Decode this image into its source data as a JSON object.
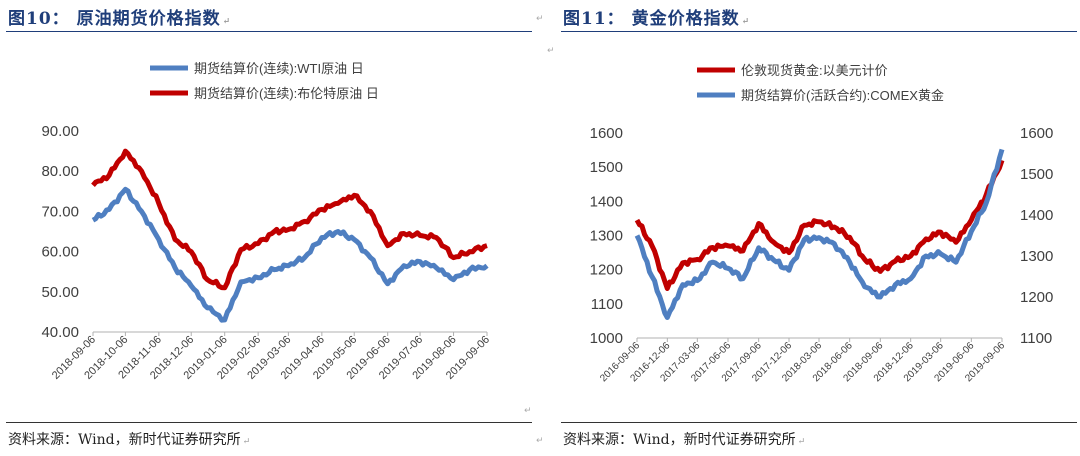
{
  "left": {
    "title": "图10：  原油期货价格指数",
    "source": "资料来源：Wind，新时代证券研究所"
  },
  "right": {
    "title": "图11：  黄金价格指数",
    "source": "资料来源：Wind，新时代证券研究所"
  },
  "chart_data": [
    {
      "type": "line",
      "title": "",
      "xlabel": "",
      "ylabel": "",
      "ylim": [
        40,
        90
      ],
      "yticks": [
        "90.00",
        "80.00",
        "70.00",
        "60.00",
        "50.00",
        "40.00"
      ],
      "xticks": [
        "2018-09-06",
        "2018-10-06",
        "2018-11-06",
        "2018-12-06",
        "2019-01-06",
        "2019-02-06",
        "2019-03-06",
        "2019-04-06",
        "2019-05-06",
        "2019-06-06",
        "2019-07-06",
        "2019-08-06",
        "2019-09-06"
      ],
      "x": [
        "2018-09-06",
        "2018-09-21",
        "2018-10-06",
        "2018-10-21",
        "2018-11-06",
        "2018-11-21",
        "2018-12-06",
        "2018-12-21",
        "2019-01-06",
        "2019-01-21",
        "2019-02-06",
        "2019-02-21",
        "2019-03-06",
        "2019-03-21",
        "2019-04-06",
        "2019-04-21",
        "2019-05-06",
        "2019-05-21",
        "2019-06-06",
        "2019-06-21",
        "2019-07-06",
        "2019-07-21",
        "2019-08-06",
        "2019-08-21",
        "2019-09-06"
      ],
      "legend": "top",
      "grid": false,
      "series": [
        {
          "name": "期货结算价(连续):WTI原油 日",
          "color": "#4f7fc1",
          "values": [
            67.8,
            70.5,
            75.5,
            70.0,
            63.0,
            56.0,
            51.5,
            46.0,
            43.0,
            52.5,
            53.5,
            55.5,
            56.5,
            58.5,
            63.5,
            65.0,
            63.0,
            58.5,
            52.0,
            56.5,
            57.5,
            56.0,
            53.0,
            55.5,
            56.5
          ]
        },
        {
          "name": "期货结算价(连续):布伦特原油 日",
          "color": "#c00000",
          "values": [
            76.5,
            79.0,
            85.0,
            80.0,
            72.0,
            63.0,
            60.0,
            53.0,
            51.0,
            60.5,
            62.0,
            65.0,
            65.5,
            67.5,
            70.5,
            72.0,
            74.0,
            70.0,
            61.5,
            64.5,
            64.0,
            63.5,
            58.5,
            60.0,
            61.5
          ]
        }
      ]
    },
    {
      "type": "line",
      "title": "",
      "xlabel": "",
      "ylabel": "",
      "ylim": [
        1000,
        1600
      ],
      "y2lim": [
        1100,
        1600
      ],
      "yticks": [
        "1600",
        "1500",
        "1400",
        "1300",
        "1200",
        "1100",
        "1000"
      ],
      "y2ticks": [
        "1600",
        "1500",
        "1400",
        "1300",
        "1200",
        "1100"
      ],
      "xticks": [
        "2016-09-06",
        "2016-12-06",
        "2017-03-06",
        "2017-06-06",
        "2017-09-06",
        "2017-12-06",
        "2018-03-06",
        "2018-06-06",
        "2018-09-06",
        "2018-12-06",
        "2019-03-06",
        "2019-06-06",
        "2019-09-06"
      ],
      "x": [
        "2016-09-06",
        "2016-10-21",
        "2016-12-06",
        "2017-01-21",
        "2017-03-06",
        "2017-04-21",
        "2017-06-06",
        "2017-07-21",
        "2017-09-06",
        "2017-10-21",
        "2017-12-06",
        "2018-01-21",
        "2018-03-06",
        "2018-04-21",
        "2018-06-06",
        "2018-07-21",
        "2018-09-06",
        "2018-10-21",
        "2018-12-06",
        "2019-01-21",
        "2019-03-06",
        "2019-04-21",
        "2019-06-06",
        "2019-07-21",
        "2019-09-06"
      ],
      "legend": "top",
      "grid": false,
      "series": [
        {
          "name": "伦敦现货黄金:以美元计价",
          "color": "#c00000",
          "axis": "left",
          "values": [
            1345,
            1270,
            1145,
            1220,
            1230,
            1265,
            1270,
            1255,
            1335,
            1280,
            1250,
            1330,
            1340,
            1325,
            1295,
            1230,
            1195,
            1225,
            1240,
            1290,
            1310,
            1280,
            1345,
            1420,
            1520
          ]
        },
        {
          "name": "期货结算价(活跃合约):COMEX黄金",
          "color": "#4f7fc1",
          "axis": "right",
          "values": [
            1350,
            1250,
            1150,
            1230,
            1240,
            1285,
            1270,
            1245,
            1320,
            1290,
            1265,
            1340,
            1345,
            1330,
            1285,
            1225,
            1200,
            1230,
            1245,
            1300,
            1305,
            1285,
            1360,
            1430,
            1560
          ]
        }
      ]
    }
  ]
}
